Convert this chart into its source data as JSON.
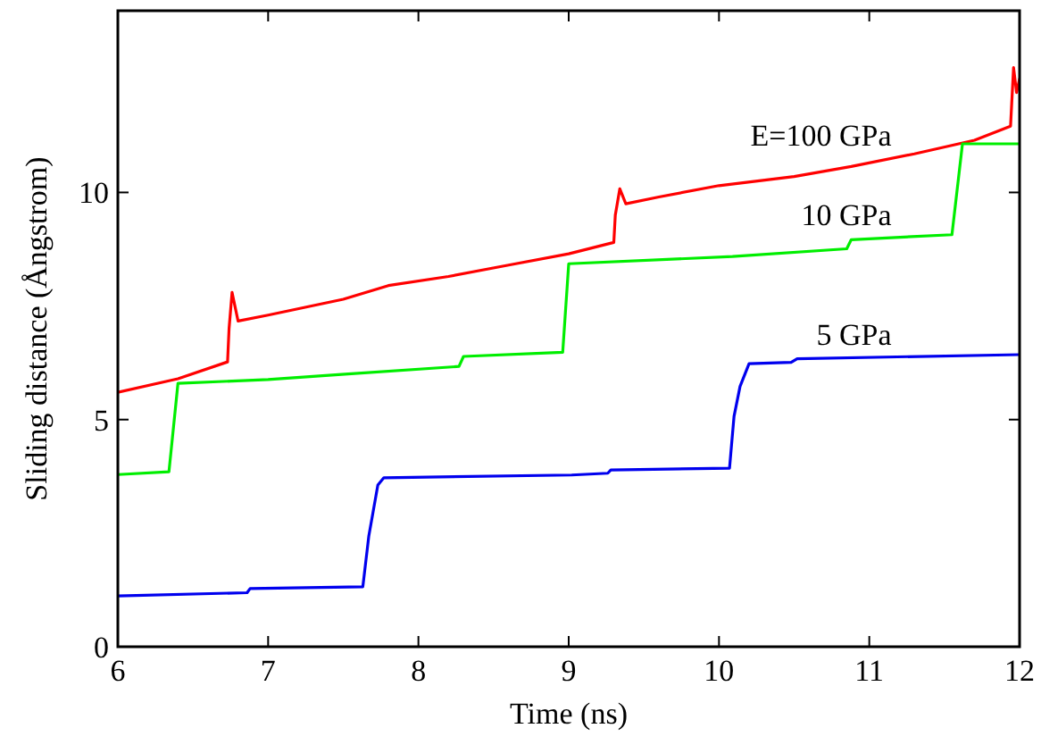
{
  "chart_data": {
    "type": "line",
    "xlabel": "Time (ns)",
    "ylabel": "Sliding distance (Ångstrom)",
    "xlim": [
      6,
      12
    ],
    "xticks": [
      6,
      7,
      8,
      9,
      10,
      11,
      12
    ],
    "ylim": [
      0,
      14
    ],
    "yticks": [
      0,
      5,
      10
    ],
    "grid": false,
    "marker": "none",
    "line_style": "solid",
    "series": [
      {
        "name": "E=100 GPa",
        "color": "#ff0000",
        "x": [
          6,
          6.4,
          6.73,
          6.74,
          6.76,
          6.8,
          7.0,
          7.5,
          7.8,
          8.2,
          8.6,
          9.0,
          9.3,
          9.31,
          9.34,
          9.38,
          9.6,
          10.0,
          10.5,
          10.88,
          11.3,
          11.7,
          11.94,
          11.96,
          11.98,
          12
        ],
        "values": [
          5.6,
          5.9,
          6.27,
          7.0,
          7.8,
          7.17,
          7.3,
          7.65,
          7.95,
          8.15,
          8.4,
          8.65,
          8.9,
          9.5,
          10.08,
          9.75,
          9.9,
          10.15,
          10.35,
          10.57,
          10.85,
          11.15,
          11.46,
          12.75,
          12.2,
          12.5
        ]
      },
      {
        "name": "10 GPa",
        "color": "#00ee00",
        "x": [
          6,
          6.34,
          6.4,
          7.0,
          7.51,
          8.27,
          8.3,
          8.96,
          9.0,
          10.09,
          10.85,
          10.88,
          11.55,
          11.62,
          12
        ],
        "values": [
          3.79,
          3.85,
          5.8,
          5.88,
          6.0,
          6.17,
          6.39,
          6.48,
          8.43,
          8.59,
          8.76,
          8.96,
          9.07,
          11.07,
          11.07
        ]
      },
      {
        "name": "5 GPa",
        "color": "#0000ee",
        "x": [
          6,
          6.86,
          6.88,
          7.63,
          7.67,
          7.73,
          7.77,
          9.02,
          9.26,
          9.28,
          10.07,
          10.1,
          10.14,
          10.2,
          10.48,
          10.52,
          12
        ],
        "values": [
          1.12,
          1.19,
          1.28,
          1.32,
          2.44,
          3.56,
          3.72,
          3.78,
          3.82,
          3.89,
          3.93,
          5.07,
          5.73,
          6.23,
          6.26,
          6.34,
          6.43
        ]
      }
    ]
  }
}
